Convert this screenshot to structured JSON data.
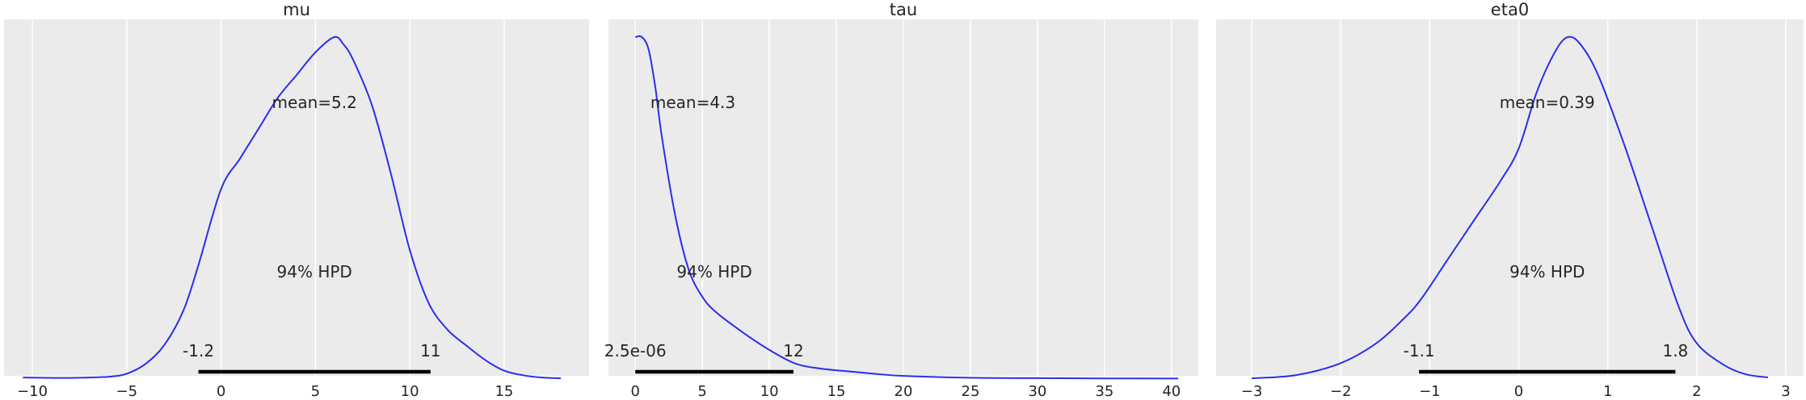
{
  "chart_data": [
    {
      "type": "area",
      "title": "mu",
      "xlim": [
        -11.5,
        19.5
      ],
      "xticks": [
        -10,
        -5,
        0,
        5,
        10,
        15
      ],
      "grid": true,
      "background": "#ebebeb",
      "line_color": "#2a2eec",
      "series": [
        {
          "x": [
            -10.5,
            -8,
            -6,
            -5,
            -4,
            -3,
            -2,
            -1.2,
            0,
            1,
            2,
            3,
            4,
            5,
            6,
            6.5,
            7,
            8,
            9,
            10,
            11,
            12,
            13,
            14,
            15,
            16,
            17,
            18
          ],
          "y": [
            0.002,
            0.0015,
            0.003,
            0.007,
            0.02,
            0.045,
            0.09,
            0.15,
            0.25,
            0.29,
            0.33,
            0.37,
            0.4,
            0.43,
            0.45,
            0.44,
            0.42,
            0.36,
            0.27,
            0.17,
            0.1,
            0.065,
            0.044,
            0.025,
            0.011,
            0.005,
            0.002,
            0.001
          ]
        }
      ],
      "annotations": {
        "mean_label": "mean=5.2",
        "hpd_label": "94% HPD",
        "hpd_low_label": "-1.2",
        "hpd_high_label": "11",
        "hpd_interval": [
          -1.2,
          11.1
        ]
      }
    },
    {
      "type": "area",
      "title": "tau",
      "xlim": [
        -2,
        42
      ],
      "xticks": [
        0,
        5,
        10,
        15,
        20,
        25,
        30,
        35,
        40
      ],
      "grid": true,
      "background": "#ebebeb",
      "line_color": "#2a2eec",
      "series": [
        {
          "x": [
            0,
            0.5,
            1,
            1.5,
            2,
            3,
            4,
            5,
            6,
            8,
            10,
            12,
            14,
            16,
            18,
            20,
            25,
            30,
            35,
            40.5
          ],
          "y": [
            0.27,
            0.27,
            0.26,
            0.23,
            0.19,
            0.128,
            0.086,
            0.065,
            0.053,
            0.037,
            0.023,
            0.012,
            0.008,
            0.006,
            0.004,
            0.0025,
            0.001,
            0.0007,
            0.0005,
            0.0004
          ]
        }
      ],
      "annotations": {
        "mean_label": "mean=4.3",
        "hpd_label": "94% HPD",
        "hpd_low_label": "2.5e-06",
        "hpd_high_label": "12",
        "hpd_interval": [
          0,
          11.8
        ]
      }
    },
    {
      "type": "area",
      "title": "eta0",
      "xlim": [
        -3.4,
        3.2
      ],
      "xticks": [
        -3,
        -2,
        -1,
        0,
        1,
        2,
        3
      ],
      "grid": true,
      "background": "#ebebeb",
      "line_color": "#2a2eec",
      "series": [
        {
          "x": [
            -3,
            -2.5,
            -2,
            -1.6,
            -1.3,
            -1.1,
            -0.8,
            -0.5,
            -0.2,
            0,
            0.2,
            0.4,
            0.55,
            0.7,
            0.9,
            1.2,
            1.5,
            1.8,
            2.0,
            2.3,
            2.55,
            2.8
          ],
          "y": [
            0.001,
            0.005,
            0.02,
            0.045,
            0.075,
            0.1,
            0.15,
            0.2,
            0.25,
            0.29,
            0.36,
            0.41,
            0.43,
            0.42,
            0.38,
            0.29,
            0.19,
            0.09,
            0.045,
            0.018,
            0.006,
            0.002
          ]
        }
      ],
      "annotations": {
        "mean_label": "mean=0.39",
        "hpd_label": "94% HPD",
        "hpd_low_label": "-1.1",
        "hpd_high_label": "1.8",
        "hpd_interval": [
          -1.12,
          1.76
        ]
      }
    }
  ]
}
